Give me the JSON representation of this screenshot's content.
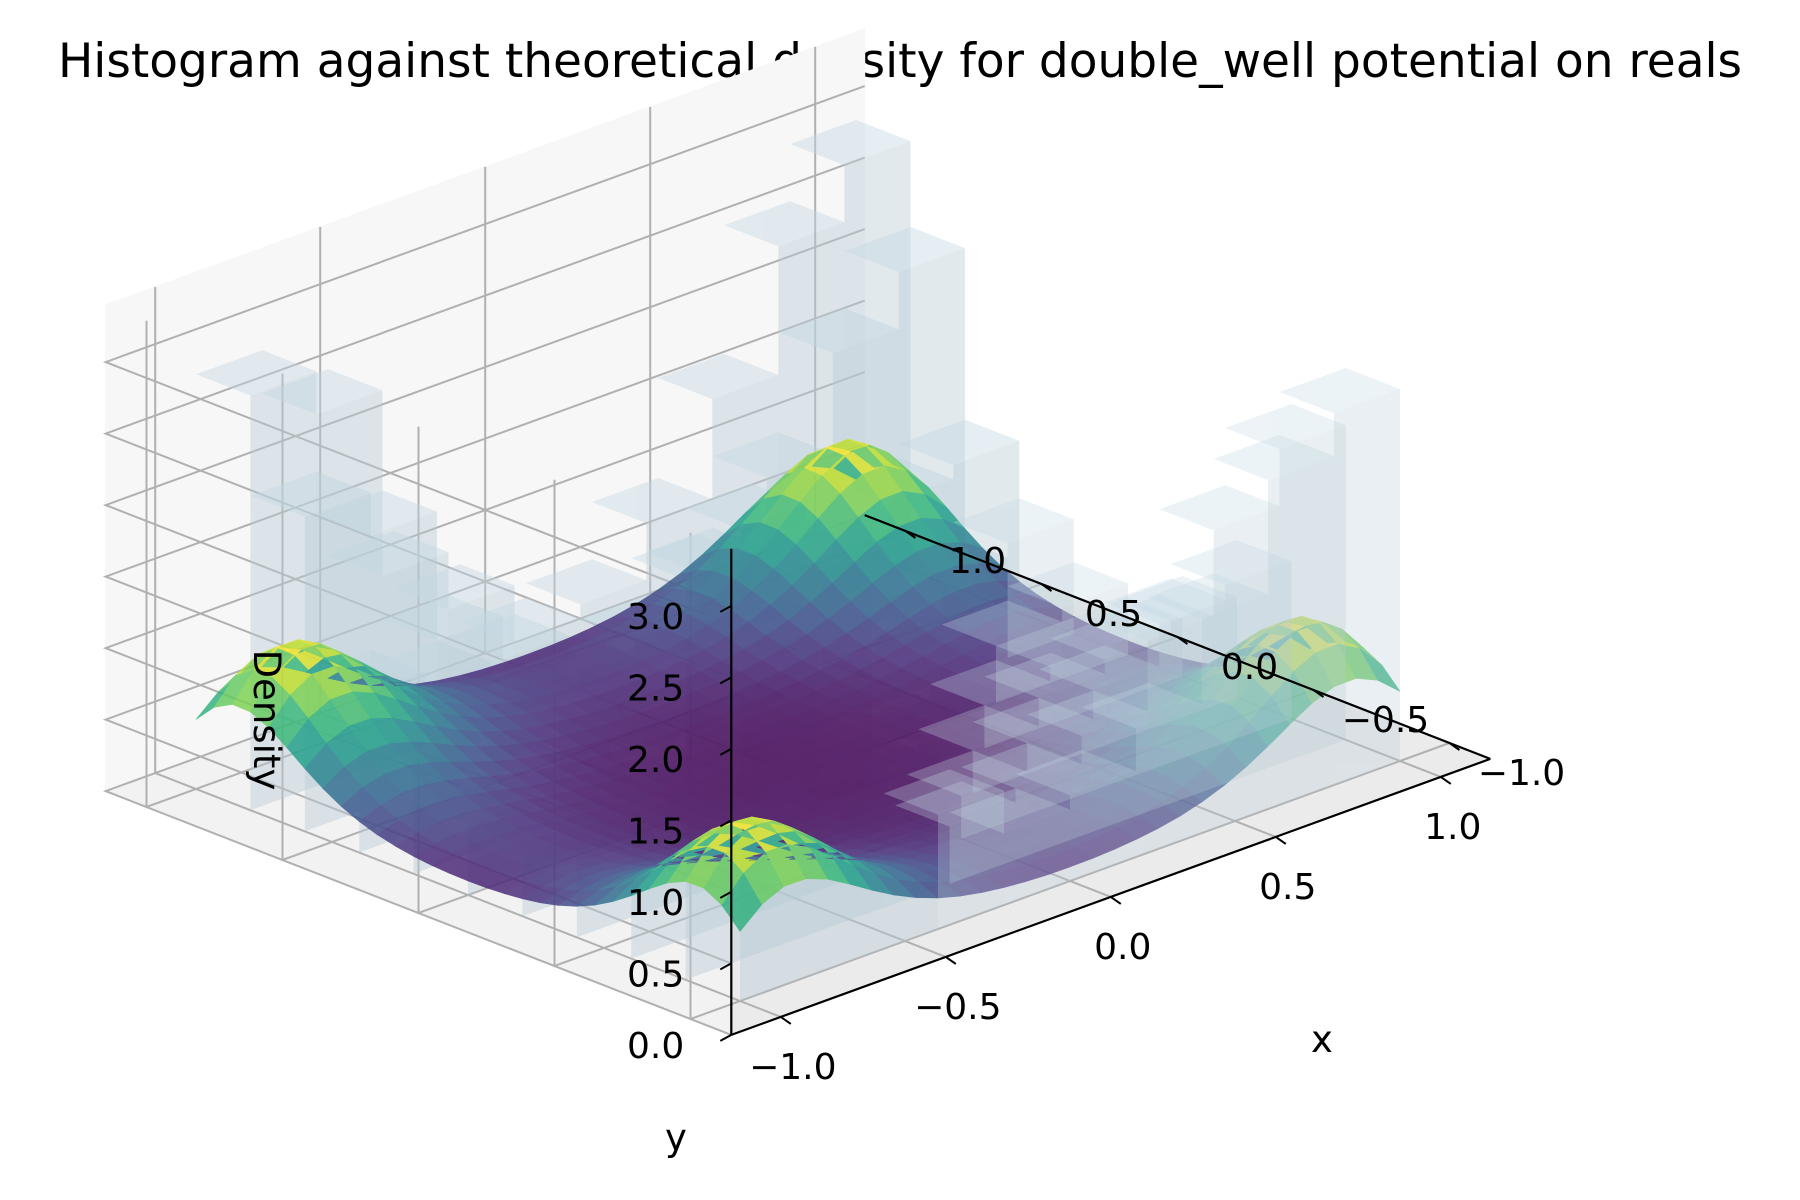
{
  "chart_data": {
    "type": "3d-bar-surface",
    "title": "Histogram against theoretical density for double_well potential on reals",
    "xlabel": "x",
    "ylabel": "y",
    "zlabel": "Density",
    "xlim": [
      -1.15,
      1.15
    ],
    "ylim": [
      -1.15,
      1.15
    ],
    "zlim": [
      0,
      3.4
    ],
    "x_ticks": [
      -1.0,
      -0.5,
      0.0,
      0.5,
      1.0
    ],
    "y_ticks": [
      -1.0,
      -0.5,
      0.0,
      0.5,
      1.0
    ],
    "z_ticks": [
      0.0,
      0.5,
      1.0,
      1.5,
      2.0,
      2.5,
      3.0
    ],
    "x_tick_labels": [
      "−1.0",
      "−0.5",
      "0.0",
      "0.5",
      "1.0"
    ],
    "y_tick_labels": [
      "−1.0",
      "−0.5",
      "0.0",
      "0.5",
      "1.0"
    ],
    "z_tick_labels": [
      "0.0",
      "0.5",
      "1.0",
      "1.5",
      "2.0",
      "2.5",
      "3.0"
    ],
    "histogram": {
      "bin_edges": [
        -1.0,
        -0.8,
        -0.6,
        -0.4,
        -0.2,
        0.0,
        0.2,
        0.4,
        0.6,
        0.8,
        1.0
      ],
      "density": [
        [
          3.3,
          2.8,
          1.1,
          0.7,
          0.4,
          0.5,
          0.8,
          1.1,
          2.2,
          2.9
        ],
        [
          2.9,
          2.1,
          0.9,
          0.6,
          0.3,
          0.4,
          0.7,
          1.0,
          1.9,
          2.6
        ],
        [
          1.2,
          1.0,
          0.6,
          0.4,
          0.2,
          0.3,
          0.5,
          0.7,
          1.0,
          1.3
        ],
        [
          0.8,
          0.6,
          0.4,
          0.3,
          0.15,
          0.2,
          0.3,
          0.5,
          0.7,
          0.9
        ],
        [
          0.5,
          0.4,
          0.3,
          0.2,
          0.1,
          0.1,
          0.2,
          0.3,
          0.4,
          0.5
        ],
        [
          0.6,
          0.5,
          0.3,
          0.2,
          0.1,
          0.1,
          0.2,
          0.3,
          0.5,
          0.6
        ],
        [
          0.9,
          0.7,
          0.5,
          0.3,
          0.2,
          0.2,
          0.3,
          0.5,
          0.8,
          1.0
        ],
        [
          1.5,
          1.2,
          0.7,
          0.5,
          0.3,
          0.3,
          0.5,
          0.8,
          1.3,
          1.7
        ],
        [
          2.3,
          1.8,
          1.0,
          0.6,
          0.4,
          0.4,
          0.7,
          1.1,
          2.0,
          2.6
        ],
        [
          2.6,
          2.2,
          1.1,
          0.7,
          0.4,
          0.5,
          0.8,
          1.2,
          2.4,
          3.0
        ]
      ]
    },
    "surface": {
      "function": "exp(-4*((x^2-0.7)^2+(y^2-0.7)^2)) / Z",
      "colormap": "viridis",
      "peak_density": 1.0
    },
    "bar_color": "#b8ccd6",
    "grid": true
  }
}
